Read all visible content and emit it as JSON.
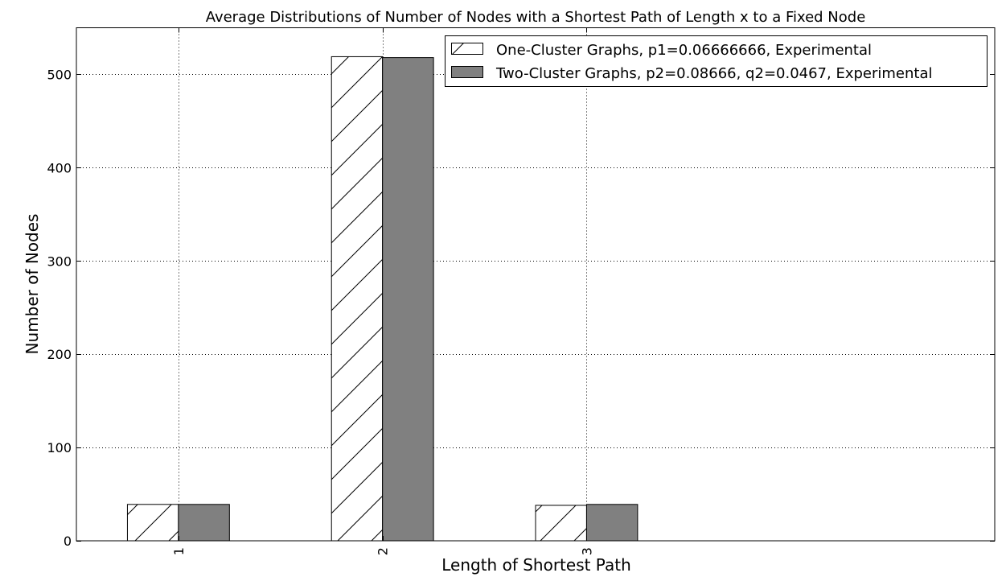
{
  "chart_data": {
    "type": "bar",
    "title": "Average Distributions of Number of Nodes with a Shortest Path of Length x to a Fixed Node",
    "xlabel": "Length of Shortest Path",
    "ylabel": "Number of Nodes",
    "categories": [
      "1",
      "2",
      "3"
    ],
    "x_tick_rotation": 90,
    "x_data_range": [
      0.5,
      5
    ],
    "ylim": [
      0,
      550
    ],
    "yticks": [
      0,
      100,
      200,
      300,
      400,
      500
    ],
    "grid": true,
    "grid_style": "dotted",
    "legend_position": "top-right",
    "series": [
      {
        "name": "One-Cluster Graphs, p1=0.06666666, Experimental",
        "values": [
          39,
          519,
          38
        ],
        "fill": "#ffffff",
        "hatch": "/"
      },
      {
        "name": "Two-Cluster Graphs, p2=0.08666, q2=0.0467, Experimental",
        "values": [
          39,
          518,
          39
        ],
        "fill": "#808080",
        "hatch": ""
      }
    ]
  }
}
